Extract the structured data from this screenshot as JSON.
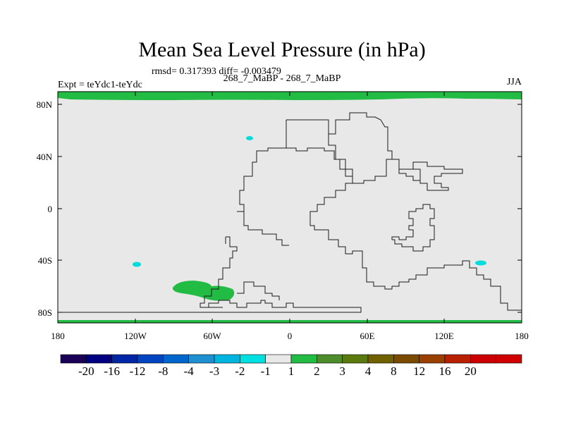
{
  "title": "Mean Sea Level Pressure (in hPa)",
  "stats_line": "rmsd= 0.317393 diff= -0.003479",
  "experiment_line": "Expt = teYdc1-teYdc",
  "run_line": "268_7_MaBP - 268_7_MaBP",
  "season": "JJA",
  "y_ticks": [
    "80N",
    "40N",
    "0",
    "40S",
    "80S"
  ],
  "x_ticks": [
    "180",
    "120W",
    "60W",
    "0",
    "60E",
    "120E",
    "180"
  ],
  "colorbar": {
    "colors": [
      "#1a0057",
      "#000080",
      "#0026a6",
      "#0044bf",
      "#0066cc",
      "#1e90d0",
      "#00b4e0",
      "#00e0e0",
      "#e8e8e8",
      "#22bb44",
      "#4c8c2b",
      "#5a7a10",
      "#706000",
      "#7a4a00",
      "#994000",
      "#b82000",
      "#cc0000",
      "#d00000"
    ],
    "labels": [
      "-20",
      "-16",
      "-12",
      "-8",
      "-4",
      "-3",
      "-2",
      "-1",
      "1",
      "2",
      "3",
      "4",
      "8",
      "12",
      "16",
      "20"
    ]
  },
  "colors": {
    "ocean_bg": "#e8e8e8",
    "positive": "#22bb44",
    "negative": "#00dcdc"
  }
}
